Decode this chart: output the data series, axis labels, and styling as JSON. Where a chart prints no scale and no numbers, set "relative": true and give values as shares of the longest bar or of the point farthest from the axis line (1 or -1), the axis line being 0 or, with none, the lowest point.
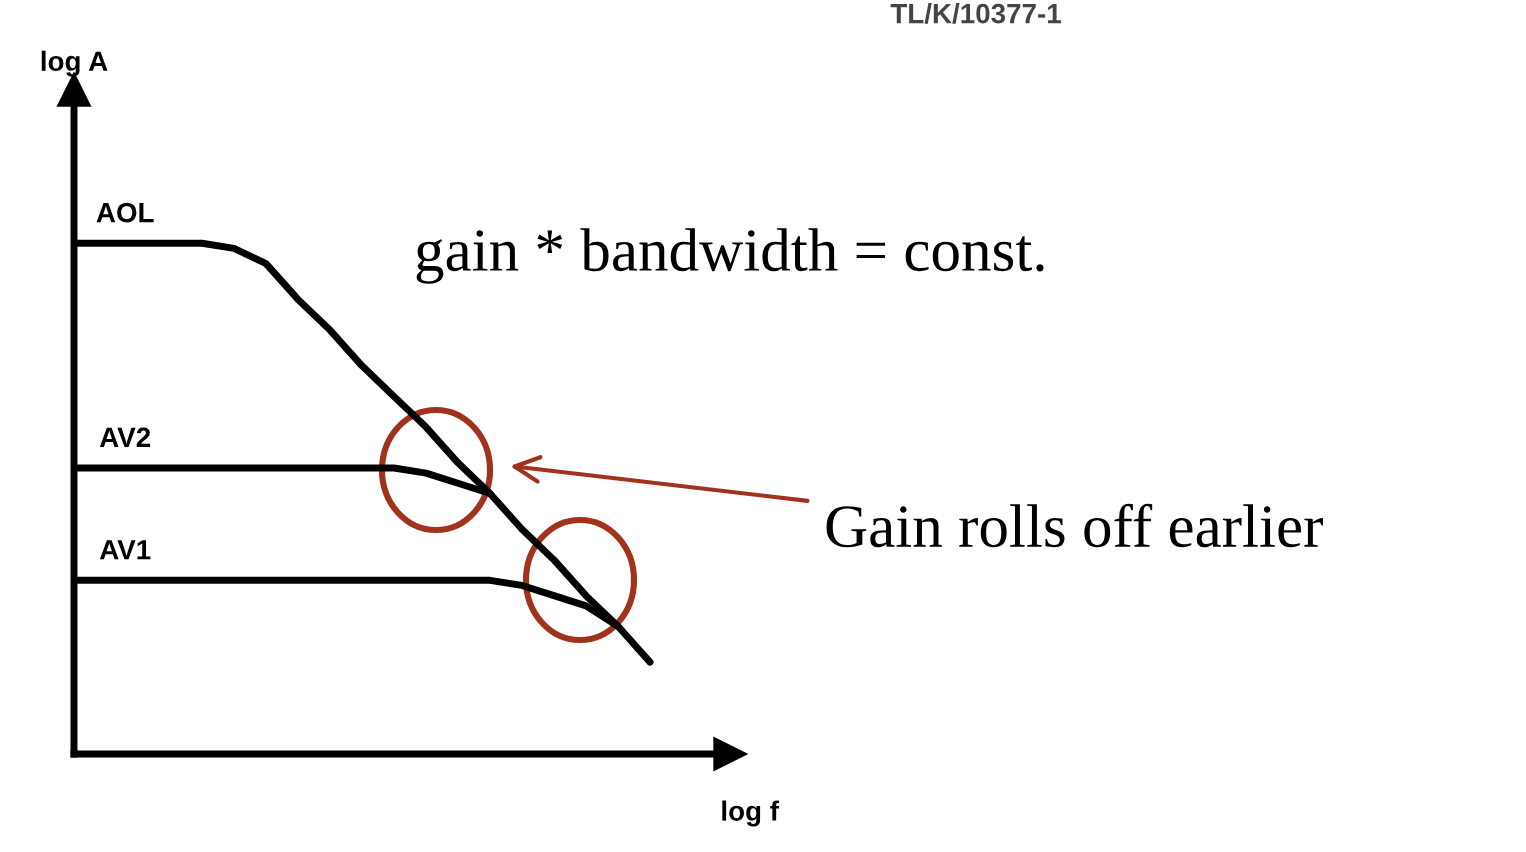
{
  "chart_data": {
    "type": "line",
    "relative": true,
    "xlabel": "log f",
    "categories": [
      null,
      null,
      null,
      null,
      null,
      null,
      null,
      null,
      null,
      null,
      null,
      null,
      null,
      null,
      null,
      null,
      null,
      null,
      null
    ],
    "series": [
      {
        "name": "AOL",
        "color": "#000000",
        "values": [
          1,
          1,
          1,
          1,
          1,
          0.99,
          0.96,
          0.89,
          0.83,
          0.76,
          0.7,
          0.64,
          0.57,
          0.51,
          0.44,
          0.38,
          0.31,
          0.25,
          0.18
        ]
      },
      {
        "name": "AV2",
        "color": "#000000",
        "values": [
          0.56,
          0.56,
          0.56,
          0.56,
          0.56,
          0.56,
          0.56,
          0.56,
          0.56,
          0.56,
          0.56,
          0.55,
          0.53,
          0.51,
          null,
          null,
          null,
          null,
          null
        ]
      },
      {
        "name": "AV1",
        "color": "#000000",
        "values": [
          0.34,
          0.34,
          0.34,
          0.34,
          0.34,
          0.34,
          0.34,
          0.34,
          0.34,
          0.34,
          0.34,
          0.34,
          0.34,
          0.34,
          0.33,
          0.31,
          0.29,
          0.25,
          null
        ]
      }
    ],
    "annotations": [
      "gain * bandwidth = const.",
      "Gain rolls off earlier",
      "TL/K/10377-1",
      "log A"
    ],
    "grid": false,
    "legend": false,
    "marker": "none",
    "line_style": "solid"
  }
}
